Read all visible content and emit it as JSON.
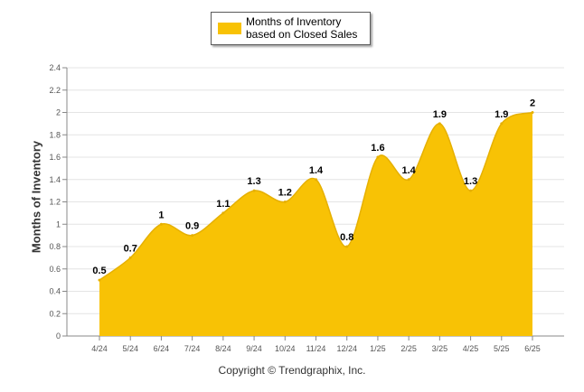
{
  "chart_data": {
    "type": "area",
    "categories": [
      "4/24",
      "5/24",
      "6/24",
      "7/24",
      "8/24",
      "9/24",
      "10/24",
      "11/24",
      "12/24",
      "1/25",
      "2/25",
      "3/25",
      "4/25",
      "5/25",
      "6/25"
    ],
    "series": [
      {
        "name": "Months of Inventory based on Closed Sales",
        "values": [
          0.5,
          0.7,
          1,
          0.9,
          1.1,
          1.3,
          1.2,
          1.4,
          0.8,
          1.6,
          1.4,
          1.9,
          1.3,
          1.9,
          2
        ],
        "color": "#f8c205"
      }
    ],
    "data_labels": [
      "0.5",
      "0.7",
      "1",
      "0.9",
      "1.1",
      "1.3",
      "1.2",
      "1.4",
      "0.8",
      "1.6",
      "1.4",
      "1.9",
      "1.3",
      "1.9",
      "2"
    ],
    "yticks": [
      "0",
      "0.2",
      "0.4",
      "0.6",
      "0.8",
      "1",
      "1.2",
      "1.4",
      "1.6",
      "1.8",
      "2",
      "2.2",
      "2.4"
    ],
    "ylim": [
      0,
      2.4
    ],
    "ylabel": "Months of Inventory",
    "xlabel": "",
    "grid": true,
    "legend_position": "top-center"
  },
  "legend": {
    "label": "Months of Inventory based on Closed Sales"
  },
  "footer": {
    "copyright": "Copyright © Trendgraphix, Inc."
  }
}
